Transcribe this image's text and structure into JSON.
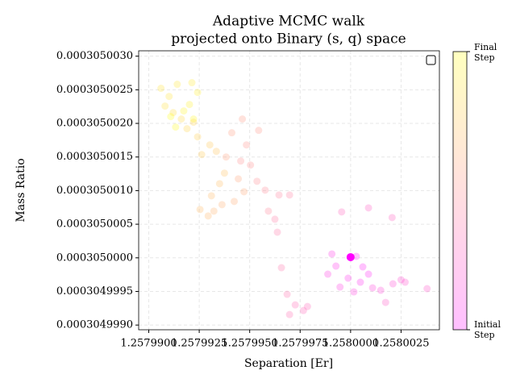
{
  "chart_data": {
    "type": "scatter",
    "title": [
      "Adaptive MCMC walk",
      "projected onto Binary (s, q) space"
    ],
    "x_label": "Separation [Er]",
    "y_label": "Mass Ratio",
    "colorbar_labels": [
      "Final Step",
      "Initial Step"
    ],
    "colormap": [
      "#ff00ff",
      "#ffff00"
    ],
    "grid": true,
    "xlim": [
      1.2579895,
      1.2580044
    ],
    "ylim": [
      0.00030499893,
      0.00030500308
    ],
    "xticks": [
      {
        "value": 1.25799,
        "label": "1.2579900"
      },
      {
        "value": 1.2579925,
        "label": "1.2579925"
      },
      {
        "value": 1.257995,
        "label": "1.2579950"
      },
      {
        "value": 1.2579975,
        "label": "1.2579975"
      },
      {
        "value": 1.258,
        "label": "1.2580000"
      },
      {
        "value": 1.2580025,
        "label": "1.2580025"
      }
    ],
    "yticks": [
      {
        "value": 0.000304999,
        "label": "0.0003049990"
      },
      {
        "value": 0.0003049995,
        "label": "0.0003049995"
      },
      {
        "value": 0.000305,
        "label": "0.0003050000"
      },
      {
        "value": 0.0003050005,
        "label": "0.0003050005"
      },
      {
        "value": 0.000305001,
        "label": "0.0003050010"
      },
      {
        "value": 0.0003050015,
        "label": "0.0003050015"
      },
      {
        "value": 0.000305002,
        "label": "0.0003050020"
      },
      {
        "value": 0.0003050025,
        "label": "0.0003050025"
      },
      {
        "value": 0.000305003,
        "label": "0.0003050030"
      }
    ],
    "x": [
      1.258,
      1.258000282,
      1.258000605,
      1.258000887,
      1.258000484,
      1.257999879,
      1.257999274,
      1.257999073,
      1.257998871,
      1.257999476,
      1.258000161,
      1.258001089,
      1.258001492,
      1.258002097,
      1.2580025,
      1.258002702,
      1.25800379,
      1.258001734,
      1.258000887,
      1.258002057,
      1.257999557,
      1.257997863,
      1.257997661,
      1.257997258,
      1.257996976,
      1.257996855,
      1.257996573,
      1.257996371,
      1.25799625,
      1.257996976,
      1.257996452,
      1.257995927,
      1.257995766,
      1.257995363,
      1.25799504,
      1.257994556,
      1.257994839,
      1.257995444,
      1.257994637,
      1.257994113,
      1.257993831,
      1.257994436,
      1.257994718,
      1.257994234,
      1.257993629,
      1.257993226,
      1.257992944,
      1.25799254,
      1.257993105,
      1.257993508,
      1.25799375,
      1.257993347,
      1.257993024,
      1.257992621,
      1.257992419,
      1.257992218,
      1.257991895,
      1.257991613,
      1.25799121,
      1.257990806,
      1.257991008,
      1.257990605,
      1.257991411,
      1.257992137,
      1.257992419,
      1.257992016,
      1.257991734,
      1.257992218,
      1.257991331,
      1.257991089
    ],
    "values": [
      0.00030500001,
      0.000305000022,
      0.000304999865,
      0.000304999757,
      0.000304999637,
      0.000304999697,
      0.000304999877,
      0.000305000058,
      0.000304999757,
      0.000304999565,
      0.000304999493,
      0.000304999553,
      0.000304999517,
      0.000304999613,
      0.000304999673,
      0.000304999637,
      0.000304999541,
      0.000304999337,
      0.000305000743,
      0.000305000599,
      0.000305000683,
      0.000304999276,
      0.000304999216,
      0.0003049993,
      0.000304999156,
      0.000304999457,
      0.000304999853,
      0.000305000382,
      0.000305000574,
      0.000305000935,
      0.000305000935,
      0.000305000695,
      0.000305001007,
      0.000305001139,
      0.00030500138,
      0.00030500144,
      0.00030500168,
      0.000305001897,
      0.000305002065,
      0.000305001861,
      0.0003050015,
      0.000305001175,
      0.000305000983,
      0.000305000839,
      0.000305000791,
      0.000305000695,
      0.000305000623,
      0.000305000719,
      0.000305000923,
      0.000305001103,
      0.00030500126,
      0.000305001584,
      0.00030500168,
      0.000305001536,
      0.0003050018,
      0.000305002017,
      0.000305001921,
      0.000305002065,
      0.000305002161,
      0.000305002257,
      0.000305002401,
      0.000305002522,
      0.000305002582,
      0.000305002606,
      0.000305002461,
      0.000305002281,
      0.000305002185,
      0.000305002065,
      0.000305001945,
      0.000305002101
    ]
  }
}
